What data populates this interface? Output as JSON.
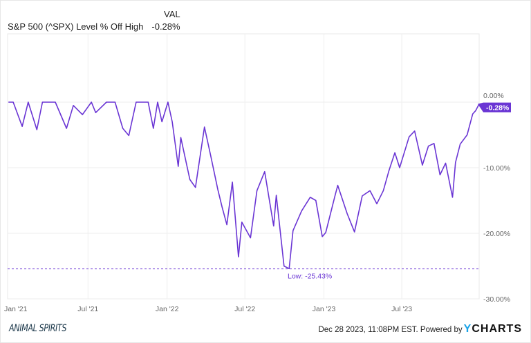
{
  "header": {
    "col_label": "VAL",
    "series_name": "S&P 500 (^SPX) Level % Off High",
    "series_value": "-0.28%"
  },
  "footer": {
    "timestamp": "Dec 28 2023, 11:08PM EST. Powered by",
    "brand_y": "Y",
    "brand_rest": "CHARTS",
    "logo": "ANIMAL SPIRITS"
  },
  "colors": {
    "line": "#6a35d4",
    "badge": "#6a35d4",
    "grid": "#eeeeee"
  },
  "chart_data": {
    "type": "line",
    "title": "S&P 500 (^SPX) Level % Off High",
    "xlabel": "",
    "ylabel": "",
    "ylim": [
      -30,
      0
    ],
    "xlim": [
      "2020-12-26",
      "2023-12-28"
    ],
    "yticks": [
      0,
      -10,
      -20,
      -30
    ],
    "ytick_labels": [
      "0.00%",
      "-10.00%",
      "-20.00%",
      "-30.00%"
    ],
    "xticks": [
      "2021-01-01",
      "2021-07-01",
      "2022-01-01",
      "2022-07-01",
      "2023-01-01",
      "2023-07-01"
    ],
    "xtick_labels": [
      "Jan '21",
      "Jul '21",
      "Jan '22",
      "Jul '22",
      "Jan '23",
      "Jul '23"
    ],
    "grid": true,
    "annotations": {
      "low_label": "Low: -25.43%",
      "low_value": -25.43,
      "last_label": "-0.28%",
      "last_value": -0.28
    },
    "series": [
      {
        "name": "S&P 500 (^SPX) Level % Off High",
        "points": [
          [
            "2020-12-28",
            0
          ],
          [
            "2021-01-08",
            0
          ],
          [
            "2021-01-29",
            -3.7
          ],
          [
            "2021-02-12",
            0
          ],
          [
            "2021-03-04",
            -4.2
          ],
          [
            "2021-03-17",
            0
          ],
          [
            "2021-04-16",
            0
          ],
          [
            "2021-05-12",
            -4
          ],
          [
            "2021-05-28",
            -0.5
          ],
          [
            "2021-06-18",
            -1.9
          ],
          [
            "2021-07-09",
            0
          ],
          [
            "2021-07-19",
            -1.6
          ],
          [
            "2021-08-13",
            0
          ],
          [
            "2021-09-02",
            0
          ],
          [
            "2021-09-20",
            -4
          ],
          [
            "2021-10-04",
            -5.1
          ],
          [
            "2021-10-21",
            0
          ],
          [
            "2021-11-18",
            0
          ],
          [
            "2021-11-30",
            -4
          ],
          [
            "2021-12-10",
            0
          ],
          [
            "2021-12-20",
            -3
          ],
          [
            "2022-01-03",
            0
          ],
          [
            "2022-01-13",
            -3
          ],
          [
            "2022-01-27",
            -9.8
          ],
          [
            "2022-02-02",
            -5.4
          ],
          [
            "2022-02-23",
            -11.8
          ],
          [
            "2022-03-08",
            -13
          ],
          [
            "2022-03-29",
            -3.8
          ],
          [
            "2022-04-12",
            -8
          ],
          [
            "2022-04-29",
            -13.3
          ],
          [
            "2022-05-09",
            -16
          ],
          [
            "2022-05-20",
            -18.7
          ],
          [
            "2022-06-02",
            -12.2
          ],
          [
            "2022-06-16",
            -23.6
          ],
          [
            "2022-06-24",
            -18.3
          ],
          [
            "2022-07-14",
            -20.7
          ],
          [
            "2022-07-29",
            -13.5
          ],
          [
            "2022-08-16",
            -10.6
          ],
          [
            "2022-09-06",
            -18.9
          ],
          [
            "2022-09-12",
            -14.2
          ],
          [
            "2022-09-30",
            -25
          ],
          [
            "2022-10-12",
            -25.4
          ],
          [
            "2022-10-21",
            -19.6
          ],
          [
            "2022-11-10",
            -16.6
          ],
          [
            "2022-11-30",
            -14.5
          ],
          [
            "2022-12-13",
            -15
          ],
          [
            "2022-12-28",
            -20.5
          ],
          [
            "2023-01-05",
            -19.9
          ],
          [
            "2023-01-27",
            -14.2
          ],
          [
            "2023-02-02",
            -12.7
          ],
          [
            "2023-02-24",
            -17
          ],
          [
            "2023-03-13",
            -19.8
          ],
          [
            "2023-03-31",
            -14.3
          ],
          [
            "2023-04-18",
            -13.5
          ],
          [
            "2023-05-04",
            -15.5
          ],
          [
            "2023-05-19",
            -13.5
          ],
          [
            "2023-06-01",
            -10.5
          ],
          [
            "2023-06-15",
            -7.7
          ],
          [
            "2023-06-26",
            -10
          ],
          [
            "2023-07-18",
            -5.3
          ],
          [
            "2023-07-31",
            -4.4
          ],
          [
            "2023-08-18",
            -9.6
          ],
          [
            "2023-09-01",
            -6.7
          ],
          [
            "2023-09-14",
            -6.3
          ],
          [
            "2023-09-28",
            -11.1
          ],
          [
            "2023-10-11",
            -9.3
          ],
          [
            "2023-10-27",
            -14.5
          ],
          [
            "2023-11-03",
            -9.2
          ],
          [
            "2023-11-14",
            -6.4
          ],
          [
            "2023-11-30",
            -5
          ],
          [
            "2023-12-13",
            -1.8
          ],
          [
            "2023-12-20",
            -1.3
          ],
          [
            "2023-12-28",
            -0.28
          ]
        ]
      }
    ]
  }
}
